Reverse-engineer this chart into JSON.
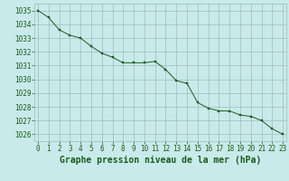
{
  "x": [
    0,
    1,
    2,
    3,
    4,
    5,
    6,
    7,
    8,
    9,
    10,
    11,
    12,
    13,
    14,
    15,
    16,
    17,
    18,
    19,
    20,
    21,
    22,
    23
  ],
  "y": [
    1035.0,
    1034.5,
    1033.6,
    1033.2,
    1033.0,
    1032.4,
    1031.9,
    1031.6,
    1031.2,
    1031.2,
    1031.2,
    1031.3,
    1030.7,
    1029.9,
    1029.7,
    1028.3,
    1027.9,
    1027.7,
    1027.7,
    1027.4,
    1027.3,
    1027.0,
    1026.4,
    1026.0
  ],
  "ylim": [
    1025.5,
    1035.5
  ],
  "yticks": [
    1026,
    1027,
    1028,
    1029,
    1030,
    1031,
    1032,
    1033,
    1034,
    1035
  ],
  "xticks": [
    0,
    1,
    2,
    3,
    4,
    5,
    6,
    7,
    8,
    9,
    10,
    11,
    12,
    13,
    14,
    15,
    16,
    17,
    18,
    19,
    20,
    21,
    22,
    23
  ],
  "xlabel": "Graphe pression niveau de la mer (hPa)",
  "line_color": "#1a5c1a",
  "marker_color": "#1a5c1a",
  "bg_color": "#c8eaea",
  "grid_color": "#a0bcbc",
  "label_color": "#1a5c1a",
  "tick_fontsize": 5.5,
  "xlabel_fontsize": 7.0,
  "xlim_left": -0.3,
  "xlim_right": 23.3
}
